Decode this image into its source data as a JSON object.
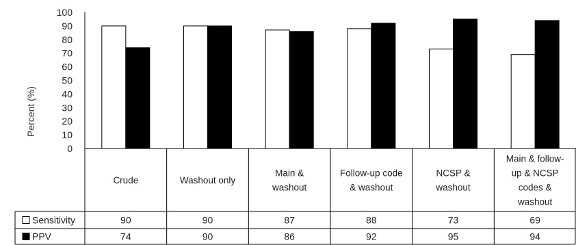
{
  "chart_data": {
    "type": "bar",
    "ylabel": "Percent (%)",
    "ylim": [
      0,
      100
    ],
    "yticks": [
      0,
      10,
      20,
      30,
      40,
      50,
      60,
      70,
      80,
      90,
      100
    ],
    "categories": [
      [
        "Crude"
      ],
      [
        "Washout only"
      ],
      [
        "Main &",
        "washout"
      ],
      [
        "Follow-up code",
        "& washout"
      ],
      [
        "NCSP &",
        "washout"
      ],
      [
        "Main & follow-",
        "up & NCSP",
        "codes &",
        "washout"
      ]
    ],
    "series": [
      {
        "name": "Sensitivity",
        "values": [
          90,
          90,
          87,
          88,
          73,
          69
        ],
        "color": "#ffffff"
      },
      {
        "name": "PPV",
        "values": [
          74,
          90,
          86,
          92,
          95,
          94
        ],
        "color": "#000000"
      }
    ],
    "grid": false,
    "legend": "data-table"
  }
}
